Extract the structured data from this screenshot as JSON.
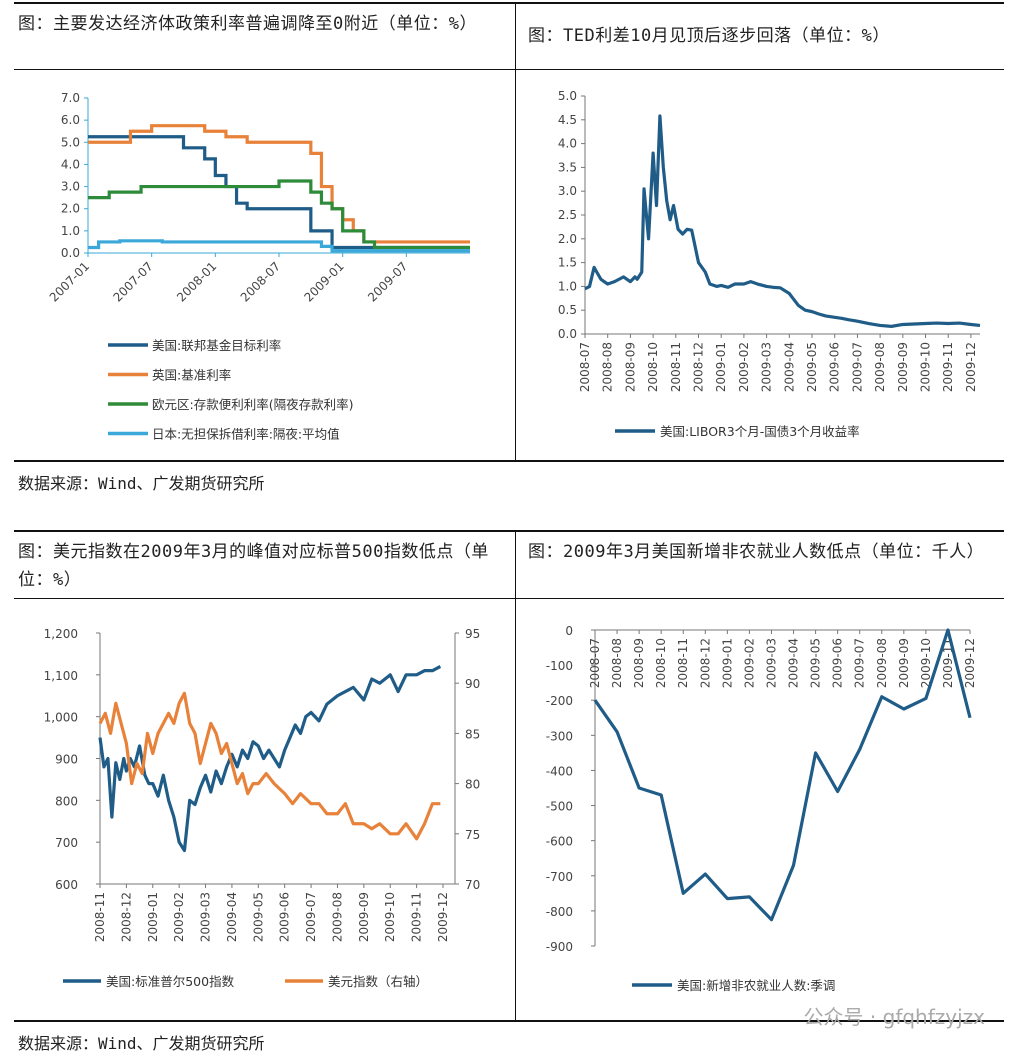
{
  "panels": [
    {
      "title": "图：主要发达经济体政策利率普遍调降至0附近（单位：%）",
      "chart_data": {
        "type": "line",
        "ylim": [
          0,
          7
        ],
        "yticks": [
          "0.0",
          "1.0",
          "2.0",
          "3.0",
          "4.0",
          "5.0",
          "6.0",
          "7.0"
        ],
        "xticks": [
          "2007-01",
          "2007-07",
          "2008-01",
          "2008-07",
          "2009-01",
          "2009-07"
        ],
        "series": [
          {
            "name": "美国:联邦基金目标利率",
            "color": "#1f5c87",
            "x": [
              "2007-01",
              "2007-09",
              "2007-10",
              "2007-12",
              "2008-01",
              "2008-02",
              "2008-03",
              "2008-04",
              "2008-10",
              "2008-10",
              "2008-12",
              "2009-12"
            ],
            "values": [
              5.25,
              5.25,
              4.75,
              4.25,
              3.5,
              3.0,
              2.25,
              2.0,
              1.5,
              1.0,
              0.25,
              0.25
            ]
          },
          {
            "name": "英国:基准利率",
            "color": "#e8823a",
            "x": [
              "2007-01",
              "2007-05",
              "2007-07",
              "2007-12",
              "2008-02",
              "2008-04",
              "2008-10",
              "2008-11",
              "2008-12",
              "2009-01",
              "2009-02",
              "2009-03",
              "2009-12"
            ],
            "values": [
              5.0,
              5.5,
              5.75,
              5.5,
              5.25,
              5.0,
              4.5,
              3.0,
              2.0,
              1.5,
              1.0,
              0.5,
              0.5
            ]
          },
          {
            "name": "欧元区:存款便利利率(隔夜存款利率)",
            "color": "#2e8b3a",
            "x": [
              "2007-01",
              "2007-03",
              "2007-06",
              "2008-07",
              "2008-10",
              "2008-11",
              "2008-12",
              "2009-01",
              "2009-03",
              "2009-04",
              "2009-12"
            ],
            "values": [
              2.5,
              2.75,
              3.0,
              3.25,
              2.75,
              2.25,
              2.0,
              1.0,
              0.5,
              0.25,
              0.25
            ]
          },
          {
            "name": "日本:无担保拆借利率:隔夜:平均值",
            "color": "#3aa8d8",
            "x": [
              "2007-01",
              "2007-02",
              "2007-04",
              "2007-08",
              "2008-04",
              "2008-10",
              "2008-11",
              "2008-12",
              "2009-06",
              "2009-12"
            ],
            "values": [
              0.25,
              0.5,
              0.55,
              0.5,
              0.5,
              0.5,
              0.3,
              0.1,
              0.1,
              0.1
            ]
          }
        ]
      }
    },
    {
      "title": "图：TED利差10月见顶后逐步回落（单位：%）",
      "chart_data": {
        "type": "line",
        "ylim": [
          0,
          5
        ],
        "yticks": [
          "0.0",
          "0.5",
          "1.0",
          "1.5",
          "2.0",
          "2.5",
          "3.0",
          "3.5",
          "4.0",
          "4.5",
          "5.0"
        ],
        "xticks": [
          "2008-07",
          "2008-08",
          "2008-09",
          "2008-10",
          "2008-11",
          "2008-12",
          "2009-01",
          "2009-02",
          "2009-03",
          "2009-04",
          "2009-05",
          "2009-06",
          "2009-07",
          "2009-08",
          "2009-09",
          "2009-10",
          "2009-11",
          "2009-12"
        ],
        "series": [
          {
            "name": "美国:LIBOR3个月-国债3个月收益率",
            "color": "#1f5c87",
            "x": [
              0,
              0.2,
              0.4,
              0.7,
              1.0,
              1.3,
              1.7,
              2.0,
              2.2,
              2.3,
              2.5,
              2.6,
              2.8,
              3.0,
              3.15,
              3.3,
              3.45,
              3.6,
              3.75,
              3.9,
              4.1,
              4.3,
              4.5,
              4.7,
              5.0,
              5.3,
              5.5,
              5.8,
              6.0,
              6.3,
              6.6,
              7.0,
              7.3,
              7.6,
              8.0,
              8.3,
              8.6,
              9.0,
              9.4,
              9.7,
              10.0,
              10.3,
              10.6,
              11.0,
              11.3,
              11.6,
              12.0,
              12.5,
              13.0,
              13.5,
              14.0,
              14.5,
              15.0,
              15.5,
              16.0,
              16.5,
              17.0,
              17.4
            ],
            "values": [
              0.95,
              1.0,
              1.4,
              1.15,
              1.05,
              1.1,
              1.2,
              1.1,
              1.2,
              1.15,
              1.3,
              3.05,
              2.0,
              3.8,
              2.7,
              4.58,
              3.5,
              2.8,
              2.4,
              2.7,
              2.2,
              2.1,
              2.2,
              2.18,
              1.5,
              1.3,
              1.05,
              1.0,
              1.02,
              0.98,
              1.05,
              1.05,
              1.1,
              1.05,
              1.0,
              0.98,
              0.97,
              0.85,
              0.6,
              0.5,
              0.47,
              0.42,
              0.38,
              0.35,
              0.33,
              0.3,
              0.27,
              0.22,
              0.18,
              0.16,
              0.2,
              0.21,
              0.22,
              0.23,
              0.22,
              0.23,
              0.2,
              0.18
            ]
          }
        ]
      }
    },
    {
      "title": "图：美元指数在2009年3月的峰值对应标普500指数低点（单位：%）",
      "chart_data": {
        "type": "line",
        "ylim": [
          600,
          1200
        ],
        "yticks": [
          "600",
          "700",
          "800",
          "900",
          "1,000",
          "1,100",
          "1,200"
        ],
        "y2lim": [
          70,
          95
        ],
        "y2ticks": [
          "70",
          "75",
          "80",
          "85",
          "90",
          "95"
        ],
        "xticks": [
          "2008-11",
          "2008-12",
          "2009-01",
          "2009-02",
          "2009-03",
          "2009-04",
          "2009-05",
          "2009-06",
          "2009-07",
          "2009-08",
          "2009-09",
          "2009-10",
          "2009-11",
          "2009-12"
        ],
        "series": [
          {
            "name": "美国:标准普尔500指数",
            "color": "#1f5c87",
            "axis": "left",
            "x": [
              0,
              0.15,
              0.3,
              0.45,
              0.6,
              0.75,
              0.9,
              1.0,
              1.15,
              1.3,
              1.5,
              1.7,
              1.85,
              2.0,
              2.2,
              2.4,
              2.6,
              2.8,
              3.0,
              3.2,
              3.4,
              3.6,
              3.8,
              4.0,
              4.2,
              4.4,
              4.6,
              4.8,
              5.0,
              5.2,
              5.4,
              5.6,
              5.8,
              6.0,
              6.2,
              6.4,
              6.6,
              6.8,
              7.0,
              7.2,
              7.4,
              7.6,
              7.8,
              8.0,
              8.3,
              8.6,
              9.0,
              9.3,
              9.6,
              10.0,
              10.3,
              10.6,
              11.0,
              11.3,
              11.6,
              12.0,
              12.3,
              12.6,
              12.9
            ],
            "values": [
              950,
              880,
              900,
              760,
              890,
              850,
              900,
              870,
              900,
              880,
              930,
              860,
              840,
              840,
              810,
              860,
              800,
              760,
              700,
              680,
              800,
              790,
              830,
              860,
              820,
              870,
              840,
              880,
              910,
              880,
              920,
              900,
              940,
              930,
              900,
              920,
              900,
              880,
              920,
              950,
              980,
              960,
              1000,
              1010,
              990,
              1030,
              1050,
              1060,
              1070,
              1040,
              1090,
              1080,
              1100,
              1060,
              1100,
              1100,
              1110,
              1110,
              1120
            ]
          },
          {
            "name": "美元指数（右轴）",
            "color": "#e8823a",
            "axis": "right",
            "x": [
              0,
              0.2,
              0.4,
              0.6,
              0.8,
              1.0,
              1.2,
              1.4,
              1.6,
              1.8,
              2.0,
              2.2,
              2.4,
              2.6,
              2.8,
              3.0,
              3.2,
              3.4,
              3.6,
              3.8,
              4.0,
              4.2,
              4.4,
              4.6,
              4.8,
              5.0,
              5.2,
              5.4,
              5.6,
              5.8,
              6.0,
              6.3,
              6.6,
              7.0,
              7.3,
              7.6,
              8.0,
              8.3,
              8.6,
              9.0,
              9.3,
              9.6,
              10.0,
              10.3,
              10.6,
              11.0,
              11.3,
              11.6,
              12.0,
              12.3,
              12.6,
              12.9
            ],
            "values": [
              86,
              87,
              85,
              88,
              86,
              84,
              80,
              82,
              81,
              85,
              83,
              85,
              86,
              87,
              86,
              88,
              89,
              86,
              85,
              82,
              84,
              86,
              85,
              83,
              84,
              82,
              80,
              81,
              79,
              80,
              80,
              81,
              80,
              79,
              78,
              79,
              78,
              78,
              77,
              77,
              78,
              76,
              76,
              75.5,
              76,
              75,
              75,
              76,
              74.5,
              76,
              78,
              78
            ]
          }
        ]
      }
    },
    {
      "title": "图：2009年3月美国新增非农就业人数低点（单位：千人）",
      "chart_data": {
        "type": "line",
        "ylim": [
          -900,
          0
        ],
        "yticks": [
          "0",
          "-100",
          "-200",
          "-300",
          "-400",
          "-500",
          "-600",
          "-700",
          "-800",
          "-900"
        ],
        "xticks": [
          "2008-07",
          "2008-08",
          "2008-09",
          "2008-10",
          "2008-11",
          "2008-12",
          "2009-01",
          "2009-02",
          "2009-03",
          "2009-04",
          "2009-05",
          "2009-06",
          "2009-07",
          "2009-08",
          "2009-09",
          "2009-10",
          "2009-11",
          "2009-12"
        ],
        "series": [
          {
            "name": "美国:新增非农就业人数:季调",
            "color": "#1f5c87",
            "values": [
              -200,
              -290,
              -450,
              -470,
              -750,
              -695,
              -765,
              -760,
              -825,
              -670,
              -350,
              -460,
              -340,
              -190,
              -225,
              -195,
              0,
              -250
            ]
          }
        ]
      }
    }
  ],
  "source_top": "数据来源：Wind、广发期货研究所",
  "source_bottom": "数据来源：Wind、广发期货研究所",
  "watermark": "公众号 · gfqhfzyjzx"
}
